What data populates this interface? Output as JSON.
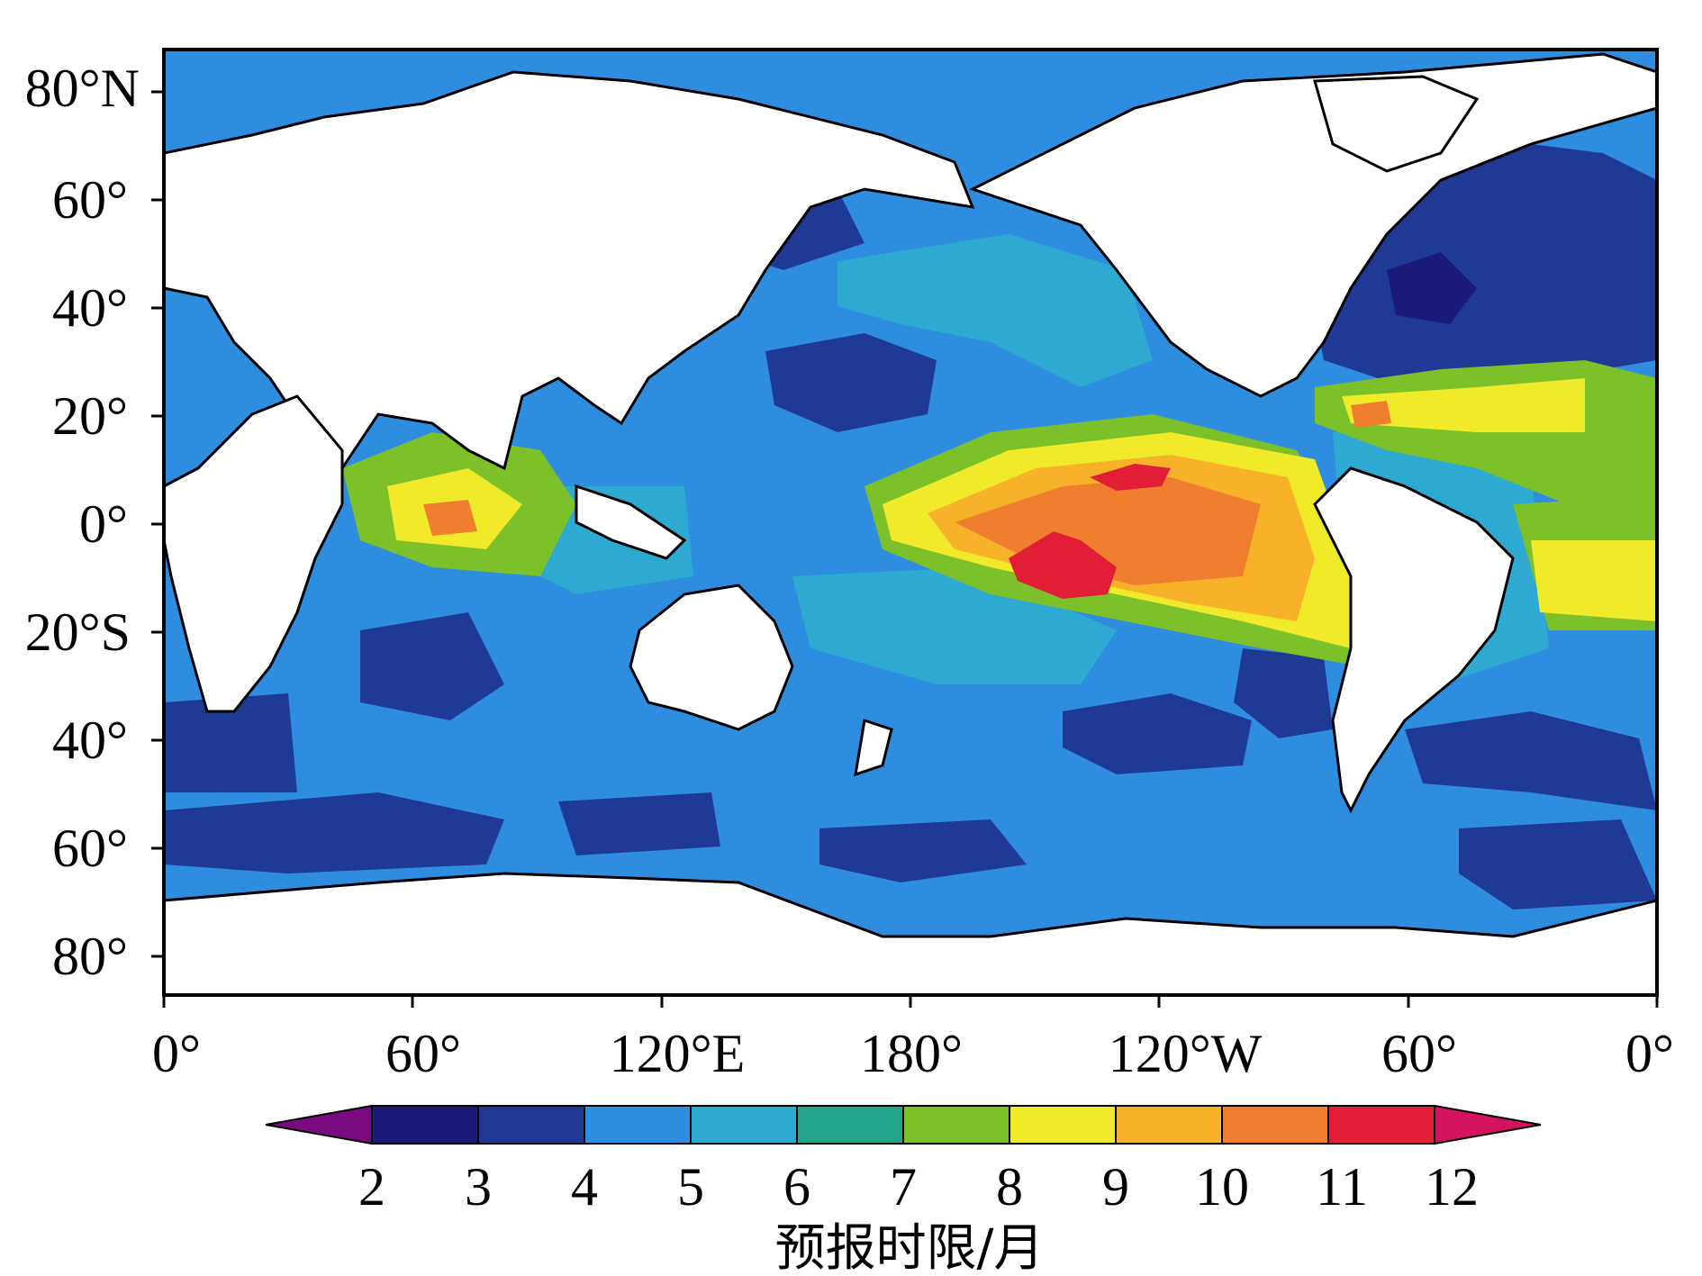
{
  "map": {
    "lat_labels": [
      "80°N",
      "60°",
      "40°",
      "20°",
      "0°",
      "20°S",
      "40°",
      "60°",
      "80°"
    ],
    "lon_labels": [
      "0°",
      "60°",
      "120°E",
      "180°",
      "120°W",
      "60°",
      "0°"
    ]
  },
  "colorbar": {
    "title": "预报时限/月",
    "levels": [
      "2",
      "3",
      "4",
      "5",
      "6",
      "7",
      "8",
      "9",
      "10",
      "11",
      "12"
    ],
    "colors": [
      "#7a0a80",
      "#1c1a78",
      "#1f3a95",
      "#2f8de0",
      "#2eaad2",
      "#24a58a",
      "#7cc02a",
      "#f0ea2a",
      "#f8b22a",
      "#ef7e2e",
      "#e11e36",
      "#d4145e"
    ]
  },
  "land_color": "#ffffff",
  "ocean_base_color": "#2f8de0"
}
